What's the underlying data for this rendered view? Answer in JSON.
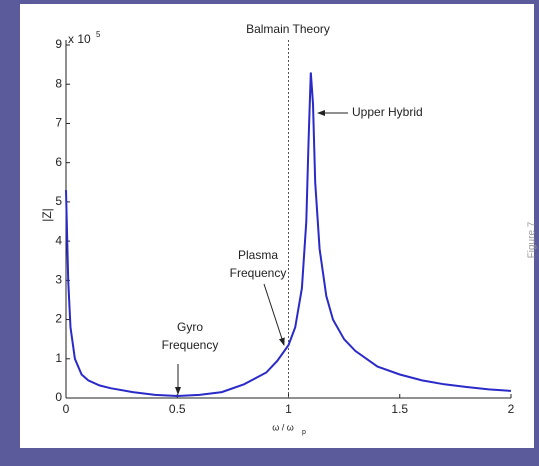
{
  "chart_data": {
    "type": "line",
    "title": "Balmain Theory",
    "xlabel": "ω / ω",
    "xlabel_sub": "p",
    "ylabel": "|Z|",
    "y_multiplier": "x 10",
    "y_multiplier_exp": "5",
    "side_text": "Figure 7",
    "series": [
      {
        "name": "|Z|",
        "color": "#2a2ac8",
        "x": [
          0,
          0.01,
          0.02,
          0.04,
          0.07,
          0.1,
          0.15,
          0.2,
          0.3,
          0.4,
          0.5,
          0.6,
          0.7,
          0.8,
          0.9,
          0.95,
          1.0,
          1.03,
          1.06,
          1.08,
          1.09,
          1.1,
          1.11,
          1.12,
          1.14,
          1.17,
          1.2,
          1.25,
          1.3,
          1.4,
          1.5,
          1.6,
          1.7,
          1.8,
          1.9,
          2.0
        ],
        "values": [
          5.3,
          3.0,
          1.8,
          1.0,
          0.6,
          0.45,
          0.32,
          0.25,
          0.15,
          0.08,
          0.05,
          0.08,
          0.15,
          0.35,
          0.65,
          0.95,
          1.35,
          1.8,
          2.8,
          4.5,
          6.5,
          8.3,
          7.5,
          5.5,
          3.8,
          2.6,
          2.0,
          1.5,
          1.2,
          0.8,
          0.6,
          0.45,
          0.35,
          0.28,
          0.22,
          0.18
        ]
      }
    ],
    "vline": 1,
    "annotations": [
      [
        "Upper Hybrid"
      ],
      [
        "Plasma",
        "Frequency"
      ],
      [
        "Gyro",
        "Frequency"
      ]
    ],
    "xlim": [
      0,
      2
    ],
    "xticks": [
      0,
      0.5,
      1,
      1.5,
      2
    ],
    "ylim": [
      0,
      9
    ],
    "yticks": [
      0,
      1,
      2,
      3,
      4,
      5,
      6,
      7,
      8,
      9
    ]
  }
}
